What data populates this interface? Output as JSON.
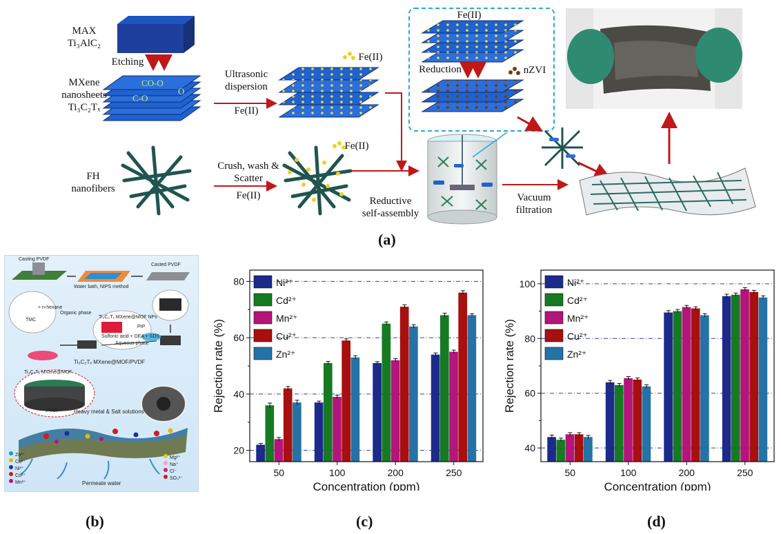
{
  "panel_a": {
    "label": "(a)",
    "max_label": "MAX",
    "ti3alc2": "Ti₃AlC₂",
    "etching": "Etching",
    "mxene_label": [
      "MXene",
      "nanosheets",
      "Ti₃C₂Tₓ"
    ],
    "surface_groups": [
      "CO-O",
      "O",
      "C-O"
    ],
    "fh_label": [
      "FH",
      "nanofibers"
    ],
    "ultrasonic": [
      "Ultrasonic",
      "dispersion"
    ],
    "fe_ii": "Fe(II)",
    "crush": [
      "Crush, wash &",
      "Scatter"
    ],
    "reduction": "Reduction",
    "nzvi": "nZVI",
    "reductive": [
      "Reductive",
      "self-assembly"
    ],
    "vacuum": [
      "Vacuum",
      "filtration"
    ]
  },
  "panel_b": {
    "label": "(b)",
    "casting_pvdf": "Casting PVDF",
    "water_bath": "Water bath, NIPS method",
    "casted_pvdf": "Casted PVDF",
    "organic_phase": "Organic phase",
    "n_hexane": "+ n-hexane",
    "tmc": "TMC",
    "aqueous_phase": "Aqueous phase",
    "mxene_mof_nps": "Ti₃C₂Tₓ MXene@MOF NPs",
    "sulfonic": "Sulfonic acid + DEA + SDS",
    "pip": "PIP",
    "composite": "Ti₃C₂Tₓ MXene@MOF/PVDF",
    "composite_top": "Ti₃C₂Tₓ MXene@MOF",
    "pvdf": "PVDF",
    "heavy_metal": "Heavy metal & Salt solutions",
    "permeate": "Permeate water",
    "legend_left": [
      "Zn²⁺",
      "Cu²⁺",
      "Ni²⁺",
      "Cd²⁺",
      "Mn²⁺"
    ],
    "legend_right": [
      "Mg²⁺",
      "Na⁺",
      "Cl⁻",
      "SO₄²⁻"
    ],
    "colors_left": [
      "#1f9bb0",
      "#e5b800",
      "#1b2fa0",
      "#d01c1c",
      "#b0148a"
    ],
    "colors_right": [
      "#d8d02a",
      "#f2a1c0",
      "#e01a73",
      "#d01c1c"
    ]
  },
  "chart_data": [
    {
      "panel": "(c)",
      "type": "bar",
      "categories": [
        "50",
        "100",
        "200",
        "250"
      ],
      "xlabel": "Concentration (ppm)",
      "ylabel": "Rejection rate (%)",
      "ylim": [
        16,
        84
      ],
      "yticks": [
        "20",
        "40",
        "60",
        "80"
      ],
      "yticks_values": [
        20,
        40,
        60,
        80
      ],
      "grid_lines": [
        20,
        40,
        60,
        80
      ],
      "legend_position": "top-left",
      "series": [
        {
          "name": "Ni²⁺",
          "color": "#1c2a8a",
          "values": [
            22,
            37,
            51,
            54
          ],
          "errors": [
            0.5,
            0.5,
            0.5,
            0.6
          ]
        },
        {
          "name": "Cd²⁺",
          "color": "#167a23",
          "values": [
            36,
            51,
            65,
            68
          ],
          "errors": [
            0.8,
            0.6,
            0.6,
            0.7
          ]
        },
        {
          "name": "Mn²⁺",
          "color": "#b3157a",
          "values": [
            24,
            39,
            52,
            55
          ],
          "errors": [
            0.6,
            0.6,
            0.6,
            0.6
          ]
        },
        {
          "name": "Cu²⁺",
          "color": "#a80f0f",
          "values": [
            42,
            59,
            71,
            76
          ],
          "errors": [
            0.7,
            0.6,
            0.7,
            0.7
          ]
        },
        {
          "name": "Zn²⁺",
          "color": "#2572a7",
          "values": [
            37,
            53,
            64,
            68
          ],
          "errors": [
            0.8,
            0.6,
            0.6,
            0.5
          ]
        }
      ]
    },
    {
      "panel": "(d)",
      "type": "bar",
      "categories": [
        "50",
        "100",
        "200",
        "250"
      ],
      "xlabel": "Concentration (ppm)",
      "ylabel": "Rejection rate (%)",
      "ylim": [
        35,
        105
      ],
      "yticks": [
        "40",
        "60",
        "80",
        "100"
      ],
      "yticks_values": [
        40,
        60,
        80,
        100
      ],
      "grid_lines": [
        40,
        60,
        80,
        100
      ],
      "legend_position": "top-left",
      "series": [
        {
          "name": "Ni²⁺",
          "color": "#1c2a8a",
          "values": [
            44,
            64,
            89.5,
            95.5
          ],
          "errors": [
            0.7,
            0.7,
            0.7,
            0.7
          ]
        },
        {
          "name": "Cd²⁺",
          "color": "#167a23",
          "values": [
            43,
            63,
            90,
            96
          ],
          "errors": [
            0.6,
            0.6,
            0.6,
            0.6
          ]
        },
        {
          "name": "Mn²⁺",
          "color": "#b3157a",
          "values": [
            45,
            65.5,
            91.5,
            98
          ],
          "errors": [
            0.6,
            0.6,
            0.6,
            0.6
          ]
        },
        {
          "name": "Cu²⁺",
          "color": "#a80f0f",
          "values": [
            45,
            65,
            91,
            97
          ],
          "errors": [
            0.6,
            0.6,
            0.6,
            0.6
          ]
        },
        {
          "name": "Zn²⁺",
          "color": "#2572a7",
          "values": [
            44,
            62.5,
            88.5,
            95
          ],
          "errors": [
            0.6,
            0.6,
            0.6,
            0.6
          ]
        }
      ]
    }
  ]
}
